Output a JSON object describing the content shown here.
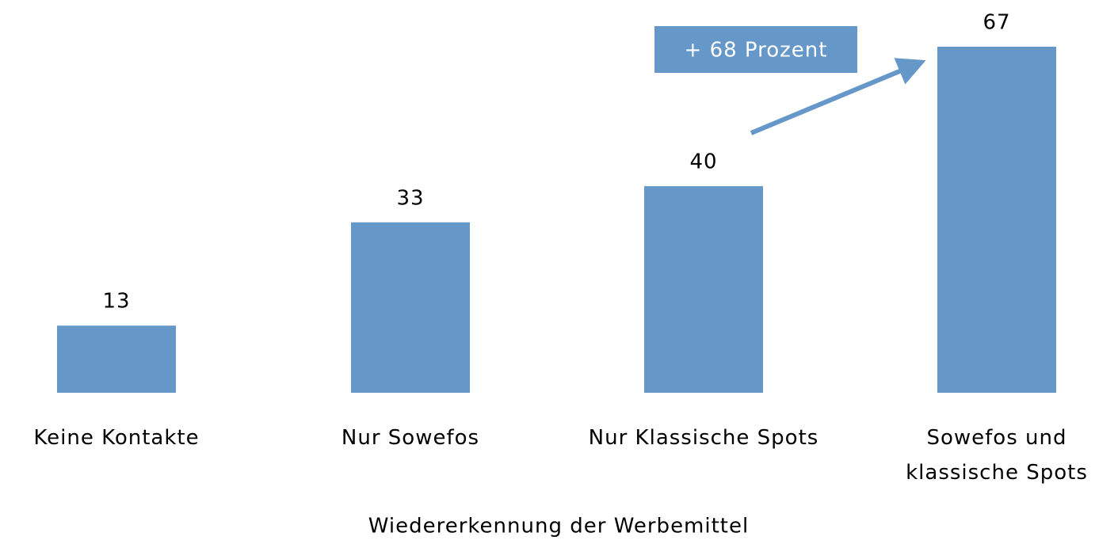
{
  "chart_data": {
    "type": "bar",
    "categories": [
      "Keine Kontakte",
      "Nur Sowefos",
      "Nur Klassische Spots",
      "Sowefos und klassische Spots"
    ],
    "values": [
      13,
      33,
      40,
      67
    ],
    "color": "#6598c9",
    "xlabel": "Wiedererkennung der Werbemittel",
    "annotation": "+ 68 Prozent"
  }
}
